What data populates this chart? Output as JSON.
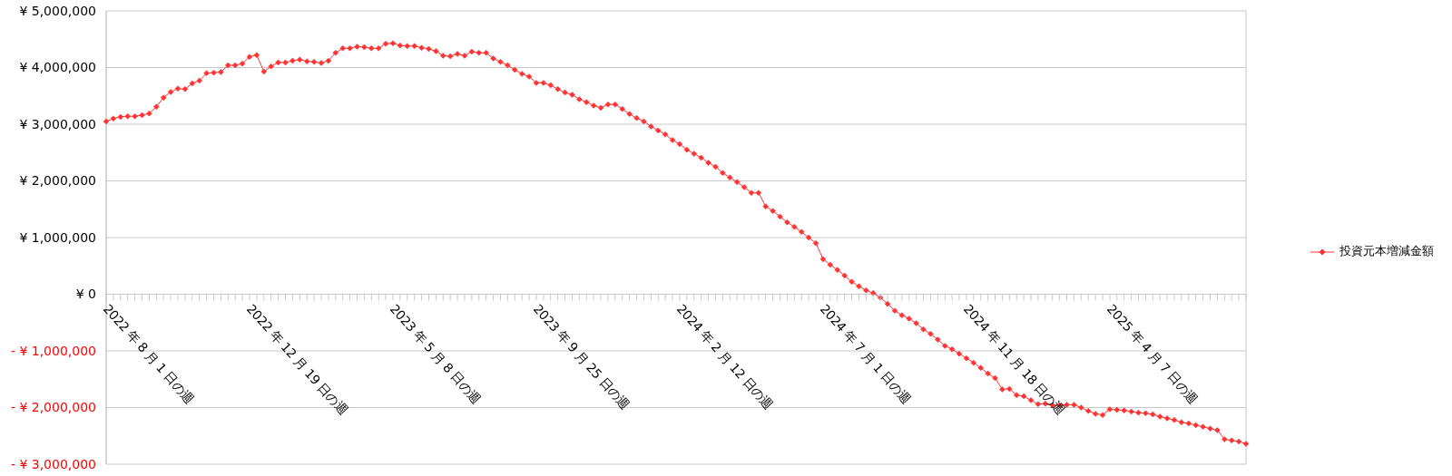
{
  "chart_data": {
    "type": "line",
    "categories": [
      "2022 年 8 月 1 日の週",
      null,
      null,
      null,
      null,
      null,
      null,
      null,
      null,
      null,
      null,
      null,
      null,
      null,
      null,
      null,
      null,
      null,
      null,
      null,
      "2022 年 12 月 19 日の週",
      null,
      null,
      null,
      null,
      null,
      null,
      null,
      null,
      null,
      null,
      null,
      null,
      null,
      null,
      null,
      null,
      null,
      null,
      null,
      "2023 年 5 月 8 日の週",
      null,
      null,
      null,
      null,
      null,
      null,
      null,
      null,
      null,
      null,
      null,
      null,
      null,
      null,
      null,
      null,
      null,
      null,
      null,
      "2023 年 9 月 25 日の週",
      null,
      null,
      null,
      null,
      null,
      null,
      null,
      null,
      null,
      null,
      null,
      null,
      null,
      null,
      null,
      null,
      null,
      null,
      null,
      "2024 年 2 月 12 日の週",
      null,
      null,
      null,
      null,
      null,
      null,
      null,
      null,
      null,
      null,
      null,
      null,
      null,
      null,
      null,
      null,
      null,
      null,
      null,
      "2024 年 7 月 1 日の週",
      null,
      null,
      null,
      null,
      null,
      null,
      null,
      null,
      null,
      null,
      null,
      null,
      null,
      null,
      null,
      null,
      null,
      null,
      null,
      "2024 年 11 月 18 日の週",
      null,
      null,
      null,
      null,
      null,
      null,
      null,
      null,
      null,
      null,
      null,
      null,
      null,
      null,
      null,
      null,
      null,
      null,
      null,
      "2025 年 4 月 7 日の週",
      null,
      null,
      null,
      null,
      null,
      null,
      null,
      null,
      null,
      null,
      null,
      null,
      null,
      null,
      null,
      null,
      null,
      null,
      null
    ],
    "series": [
      {
        "name": "投資元本増減金額",
        "color": "#ff3333",
        "values": [
          3050000,
          3100000,
          3130000,
          3140000,
          3140000,
          3160000,
          3190000,
          3310000,
          3470000,
          3570000,
          3630000,
          3620000,
          3720000,
          3770000,
          3900000,
          3910000,
          3920000,
          4040000,
          4040000,
          4070000,
          4190000,
          4220000,
          3930000,
          4020000,
          4090000,
          4090000,
          4120000,
          4140000,
          4110000,
          4100000,
          4080000,
          4120000,
          4260000,
          4340000,
          4340000,
          4370000,
          4360000,
          4340000,
          4340000,
          4420000,
          4430000,
          4390000,
          4380000,
          4380000,
          4350000,
          4330000,
          4290000,
          4210000,
          4200000,
          4240000,
          4210000,
          4280000,
          4260000,
          4260000,
          4160000,
          4100000,
          4040000,
          3960000,
          3890000,
          3840000,
          3730000,
          3730000,
          3690000,
          3620000,
          3560000,
          3520000,
          3440000,
          3390000,
          3330000,
          3290000,
          3350000,
          3350000,
          3270000,
          3180000,
          3110000,
          3050000,
          2960000,
          2890000,
          2820000,
          2720000,
          2650000,
          2550000,
          2480000,
          2410000,
          2320000,
          2250000,
          2140000,
          2060000,
          1980000,
          1890000,
          1790000,
          1790000,
          1550000,
          1470000,
          1370000,
          1270000,
          1190000,
          1100000,
          1000000,
          900000,
          620000,
          520000,
          430000,
          330000,
          220000,
          140000,
          70000,
          20000,
          -60000,
          -170000,
          -290000,
          -370000,
          -430000,
          -510000,
          -620000,
          -700000,
          -800000,
          -910000,
          -970000,
          -1050000,
          -1130000,
          -1210000,
          -1300000,
          -1400000,
          -1480000,
          -1680000,
          -1670000,
          -1780000,
          -1800000,
          -1870000,
          -1940000,
          -1930000,
          -1960000,
          -1960000,
          -1950000,
          -1950000,
          -2000000,
          -2060000,
          -2110000,
          -2130000,
          -2030000,
          -2040000,
          -2050000,
          -2070000,
          -2090000,
          -2100000,
          -2120000,
          -2160000,
          -2190000,
          -2220000,
          -2260000,
          -2280000,
          -2310000,
          -2340000,
          -2370000,
          -2400000,
          -2560000,
          -2580000,
          -2600000,
          -2640000
        ]
      }
    ],
    "ylim": [
      -3000000,
      5000000
    ],
    "yticks": [
      {
        "value": -3000000,
        "label": "- ¥ 3,000,000"
      },
      {
        "value": -2000000,
        "label": "- ¥ 2,000,000"
      },
      {
        "value": -1000000,
        "label": "- ¥ 1,000,000"
      },
      {
        "value": 0,
        "label": "¥ 0"
      },
      {
        "value": 1000000,
        "label": "¥ 1,000,000"
      },
      {
        "value": 2000000,
        "label": "¥ 2,000,000"
      },
      {
        "value": 3000000,
        "label": "¥ 3,000,000"
      },
      {
        "value": 4000000,
        "label": "¥ 4,000,000"
      },
      {
        "value": 5000000,
        "label": "¥ 5,000,000"
      }
    ],
    "grid": "y",
    "legend": "right",
    "marker": "diamond"
  }
}
